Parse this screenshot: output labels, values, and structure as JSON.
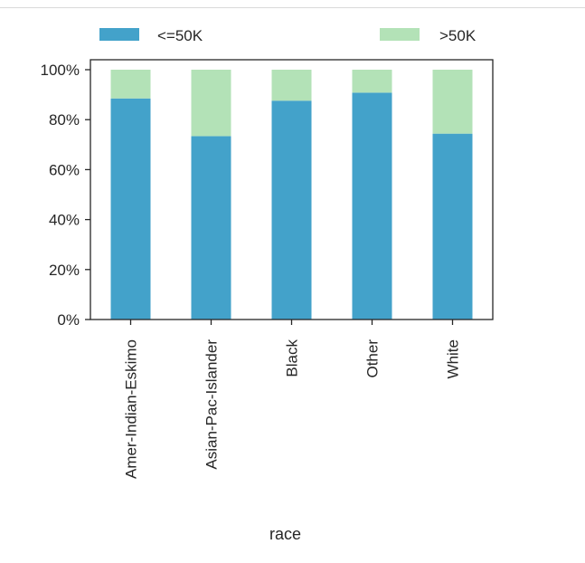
{
  "chart_data": {
    "type": "bar",
    "stacked": true,
    "categories": [
      "Amer-Indian-Eskimo",
      "Asian-Pac-Islander",
      "Black",
      "Other",
      "White"
    ],
    "series": [
      {
        "name": "<=50K",
        "color": "#43a2ca",
        "values": [
          0.885,
          0.734,
          0.876,
          0.908,
          0.744
        ]
      },
      {
        "name": ">50K",
        "color": "#b3e2b7",
        "values": [
          0.115,
          0.266,
          0.124,
          0.092,
          0.256
        ]
      }
    ],
    "xlabel": "race",
    "ylabel": "",
    "ylim": [
      0,
      1
    ],
    "yticks": [
      0,
      0.2,
      0.4,
      0.6,
      0.8,
      1.0
    ],
    "ytick_labels": [
      "0%",
      "20%",
      "40%",
      "60%",
      "80%",
      "100%"
    ],
    "legend_position": "top",
    "grid": false
  }
}
